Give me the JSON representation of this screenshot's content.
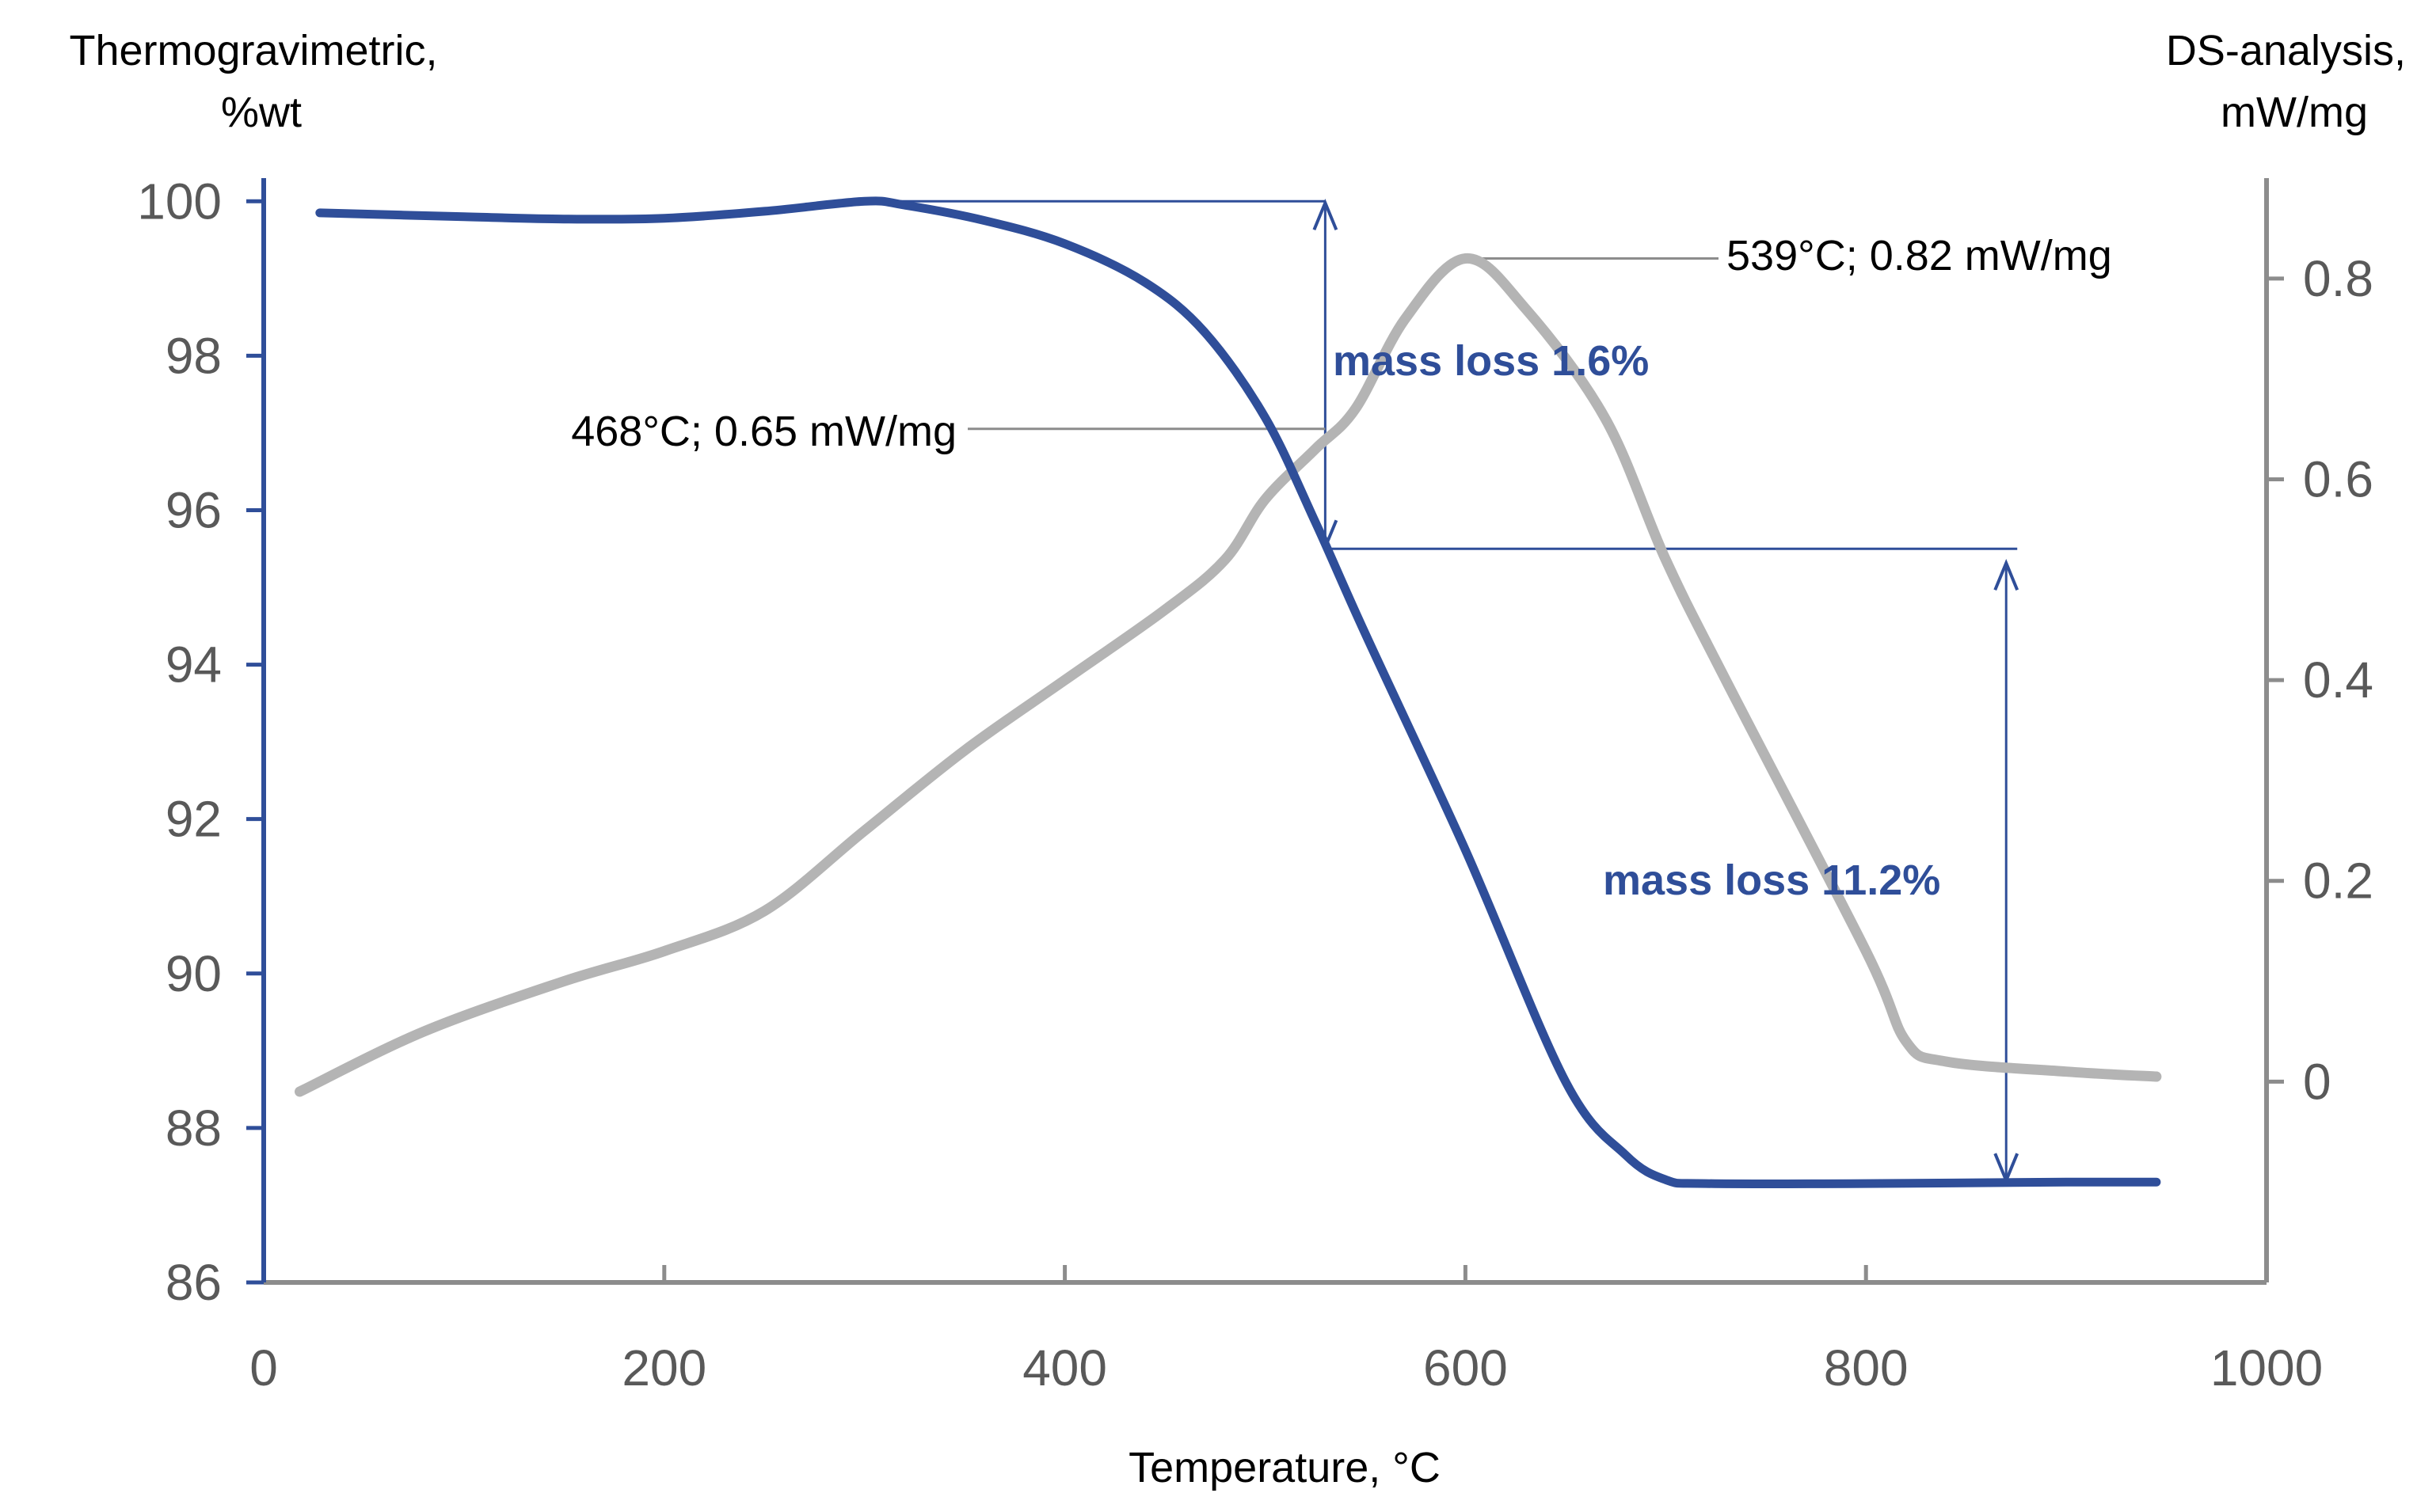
{
  "chart_data": {
    "type": "line",
    "colors": {
      "tg": "#2f4e99",
      "dsc": "#b4b4b4",
      "left_axis": "#2f4e99",
      "right_axis": "#8c8c8c",
      "tick_text": "#595959",
      "annotation_blue": "#2f4e99"
    },
    "xlabel": "Temperature, °C",
    "ylabel_left": [
      "Thermogravimetric,",
      "%wt"
    ],
    "ylabel_right": [
      "DS-analysis,",
      "mW/mg"
    ],
    "xlim": [
      0,
      1000
    ],
    "ylim_left": [
      86,
      100.3
    ],
    "ylim_right": [
      -0.2,
      0.9
    ],
    "x_ticks": [
      0,
      200,
      400,
      600,
      800,
      1000
    ],
    "x_tick_labels": [
      "0",
      "200",
      "400",
      "600",
      "800",
      "1000"
    ],
    "y_left_ticks": [
      86,
      88,
      90,
      92,
      94,
      96,
      98,
      100
    ],
    "y_left_tick_labels": [
      "86",
      "88",
      "90",
      "92",
      "94",
      "96",
      "98",
      "100"
    ],
    "y_right_ticks": [
      0,
      0.2,
      0.4,
      0.6,
      0.8
    ],
    "y_right_tick_labels": [
      "0",
      "0.2",
      "0.4",
      "0.6",
      "0.8"
    ],
    "series": [
      {
        "name": "Thermogravimetric",
        "axis": "left",
        "x": [
          28,
          100,
          150,
          200,
          250,
          300,
          320,
          360,
          400,
          440,
          470,
          500,
          525,
          550,
          600,
          650,
          680,
          700,
          720,
          800,
          900,
          945
        ],
        "y": [
          99.85,
          99.8,
          99.77,
          99.78,
          99.87,
          100.0,
          99.95,
          99.75,
          99.45,
          98.95,
          98.3,
          97.2,
          95.85,
          94.4,
          91.6,
          88.6,
          87.65,
          87.33,
          87.28,
          87.28,
          87.3,
          87.3
        ]
      },
      {
        "name": "DS-analysis",
        "axis": "right",
        "x": [
          18,
          80,
          150,
          200,
          250,
          300,
          350,
          400,
          450,
          480,
          500,
          525,
          545,
          570,
          600,
          630,
          670,
          700,
          730,
          800,
          820,
          840,
          900,
          945
        ],
        "y": [
          -0.01,
          0.05,
          0.1,
          0.13,
          0.17,
          0.25,
          0.33,
          0.4,
          0.47,
          0.52,
          0.58,
          0.63,
          0.67,
          0.76,
          0.82,
          0.77,
          0.66,
          0.52,
          0.4,
          0.13,
          0.04,
          0.02,
          0.01,
          0.005
        ]
      }
    ],
    "annotations": {
      "peak1": "468°C; 0.65 mW/mg",
      "peak2": "539°C; 0.82 mW/mg",
      "mass_loss_1": "mass loss 1.6%",
      "mass_loss_2": "mass loss 11.2%"
    },
    "annotation_points": {
      "peak1": {
        "x": 530,
        "y": 0.64,
        "axis": "right"
      },
      "peak2": {
        "x": 600,
        "y": 0.82,
        "axis": "right"
      },
      "mass_loss_1": {
        "x": 530,
        "y_top": 100.0,
        "y_bottom": 95.5,
        "axis": "left"
      },
      "mass_loss_2": {
        "x": 870,
        "y_top": 95.5,
        "y_bottom": 87.3,
        "axis": "left"
      }
    }
  }
}
